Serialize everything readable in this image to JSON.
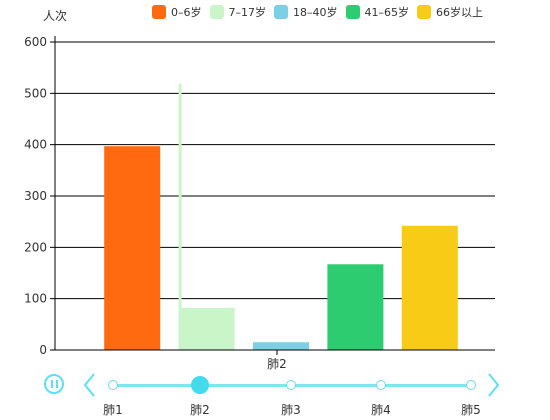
{
  "chart_data": {
    "type": "bar",
    "title": "",
    "xlabel": "",
    "ylabel": "人次",
    "ylim": [
      0,
      600
    ],
    "yticks": [
      0,
      100,
      200,
      300,
      400,
      500,
      600
    ],
    "categories": [
      "肺2"
    ],
    "series": [
      {
        "name": "0–6岁",
        "color": "#ff6a10",
        "values": [
          397
        ]
      },
      {
        "name": "7–17岁",
        "color": "#c9f5c8",
        "values": [
          82
        ]
      },
      {
        "name": "18–40岁",
        "color": "#7ccfe4",
        "values": [
          15
        ]
      },
      {
        "name": "41–65岁",
        "color": "#2ecc71",
        "values": [
          167
        ]
      },
      {
        "name": "66岁以上",
        "color": "#f8cb16",
        "values": [
          242
        ]
      }
    ],
    "marker_line": {
      "series": "7–17岁",
      "value": 519
    },
    "grid": true,
    "legend_position": "top"
  },
  "timeline": {
    "items": [
      "肺1",
      "肺2",
      "肺3",
      "肺4",
      "肺5"
    ],
    "current_index": 1
  },
  "colors": {
    "accent": "#43dbeb",
    "axis": "#000000"
  }
}
